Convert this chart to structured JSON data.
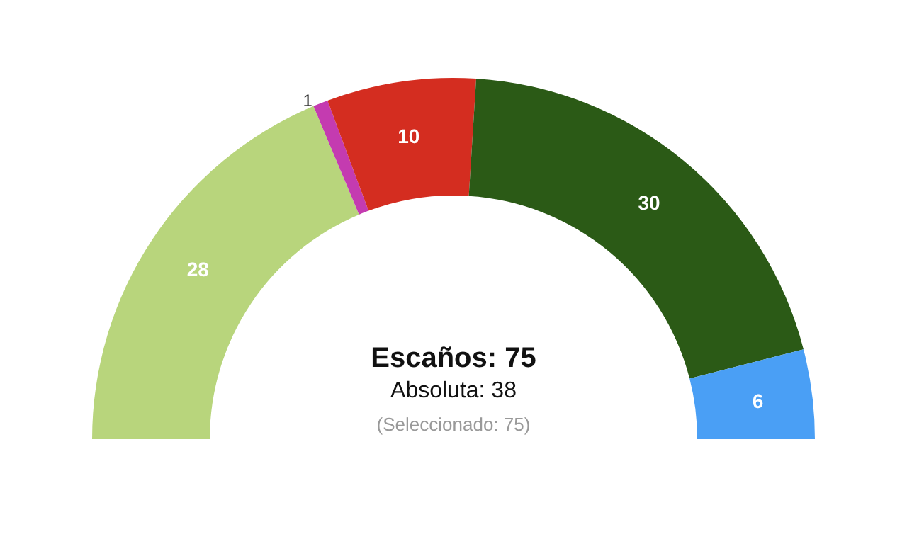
{
  "chart_data": {
    "type": "donut",
    "categories": [
      null,
      null,
      null,
      null,
      null
    ],
    "values": [
      28,
      1,
      10,
      30,
      6
    ],
    "colors": [
      "#b8d57c",
      "#c43bb0",
      "#d42d20",
      "#2b5a16",
      "#4a9ff5"
    ],
    "data_labels": true,
    "annotations": [
      "Escaños: 75",
      "Absoluta: 38",
      "(Seleccionado: 75)"
    ]
  }
}
